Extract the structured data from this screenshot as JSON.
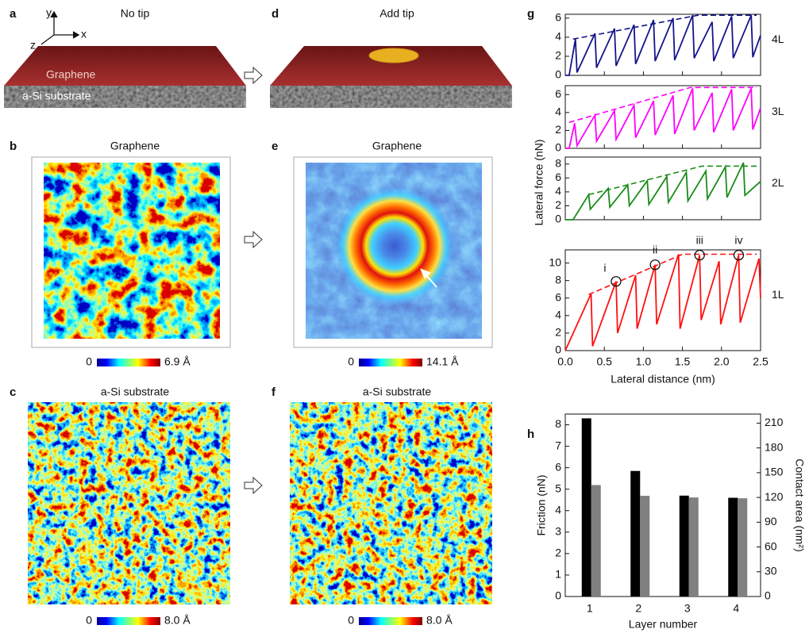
{
  "panels": {
    "a": {
      "letter": "a",
      "title": "No tip",
      "labels": [
        "Graphene",
        "a-Si substrate"
      ],
      "axes": [
        "y",
        "x",
        "z"
      ]
    },
    "b": {
      "letter": "b",
      "title": "Graphene",
      "colorbar": [
        "0",
        "6.9 Å"
      ]
    },
    "c": {
      "letter": "c",
      "title": "a-Si substrate",
      "colorbar": [
        "0",
        "8.0 Å"
      ]
    },
    "d": {
      "letter": "d",
      "title": "Add tip"
    },
    "e": {
      "letter": "e",
      "title": "Graphene",
      "colorbar": [
        "0",
        "14.1 Å"
      ]
    },
    "f": {
      "letter": "f",
      "title": "a-Si substrate",
      "colorbar": [
        "0",
        "8.0 Å"
      ]
    },
    "g": {
      "letter": "g"
    },
    "h": {
      "letter": "h"
    }
  },
  "chart_data": [
    {
      "type": "line",
      "label": "4L",
      "ylabel": "Lateral force (nN)",
      "xlim": [
        0,
        2.5
      ],
      "ylim": [
        0,
        6.4
      ],
      "yticks": [
        0,
        2,
        4,
        6
      ],
      "series": [
        {
          "color": "#14148c",
          "x": [
            0,
            0.05,
            0.13,
            0.15,
            0.38,
            0.4,
            0.63,
            0.65,
            0.88,
            0.9,
            1.13,
            1.15,
            1.38,
            1.4,
            1.63,
            1.65,
            1.88,
            1.9,
            2.13,
            2.15,
            2.38,
            2.4,
            2.5
          ],
          "values": [
            0,
            0,
            3.8,
            0.3,
            4.4,
            0.8,
            4.9,
            1.0,
            5.3,
            1.2,
            5.8,
            1.5,
            6.0,
            1.6,
            6.3,
            1.8,
            5.6,
            1.5,
            6.2,
            1.8,
            6.3,
            1.9,
            4.2
          ]
        },
        {
          "color": "#14148c",
          "dashed": true,
          "x": [
            0.1,
            1.7,
            2.45
          ],
          "values": [
            3.8,
            6.3,
            6.3
          ]
        }
      ]
    },
    {
      "type": "line",
      "label": "3L",
      "xlim": [
        0,
        2.5
      ],
      "ylim": [
        0,
        7
      ],
      "yticks": [
        0,
        2,
        4,
        6
      ],
      "series": [
        {
          "color": "#ff00ff",
          "x": [
            0,
            0.05,
            0.12,
            0.15,
            0.38,
            0.4,
            0.63,
            0.65,
            0.88,
            0.9,
            1.13,
            1.15,
            1.38,
            1.4,
            1.63,
            1.65,
            1.88,
            1.9,
            2.13,
            2.15,
            2.38,
            2.4,
            2.5
          ],
          "values": [
            0,
            0,
            2.8,
            0.3,
            3.7,
            0.8,
            4.2,
            1.0,
            4.8,
            1.2,
            5.3,
            1.5,
            5.9,
            1.6,
            6.7,
            2.0,
            6.2,
            1.8,
            6.6,
            2.0,
            6.7,
            2.1,
            4.5
          ]
        },
        {
          "color": "#ff00ff",
          "dashed": true,
          "x": [
            0.05,
            1.6,
            2.45
          ],
          "values": [
            2.9,
            6.8,
            6.8
          ]
        }
      ]
    },
    {
      "type": "line",
      "label": "2L",
      "xlim": [
        0,
        2.5
      ],
      "ylim": [
        0,
        9
      ],
      "yticks": [
        0,
        2,
        4,
        6,
        8
      ],
      "series": [
        {
          "color": "#1a8c1a",
          "x": [
            0,
            0.1,
            0.3,
            0.32,
            0.55,
            0.57,
            0.8,
            0.82,
            1.05,
            1.07,
            1.3,
            1.32,
            1.55,
            1.57,
            1.8,
            1.82,
            2.05,
            2.07,
            2.28,
            2.3,
            2.5
          ],
          "values": [
            0,
            0,
            3.6,
            1.5,
            4.5,
            1.8,
            5.0,
            2.0,
            5.6,
            2.2,
            6.2,
            2.5,
            6.8,
            2.7,
            7.0,
            3.0,
            7.6,
            3.2,
            8.2,
            3.5,
            5.5
          ]
        },
        {
          "color": "#1a8c1a",
          "dashed": true,
          "x": [
            0.3,
            1.75,
            2.45
          ],
          "values": [
            3.6,
            7.7,
            7.7
          ]
        }
      ]
    },
    {
      "type": "line",
      "label": "1L",
      "xlabel": "Lateral distance (nm)",
      "xlim": [
        0,
        2.5
      ],
      "ylim": [
        0,
        11.5
      ],
      "yticks": [
        0,
        2,
        4,
        6,
        8,
        10
      ],
      "xticks": [
        {
          "value": 0,
          "label": "0.0"
        },
        0.5,
        {
          "value": 1,
          "label": "1.0"
        },
        1.5,
        {
          "value": 2,
          "label": "2.0"
        },
        2.5
      ],
      "series": [
        {
          "color": "#ff1010",
          "x": [
            0,
            0.33,
            0.35,
            0.65,
            0.67,
            0.9,
            0.92,
            1.15,
            1.17,
            1.45,
            1.47,
            1.72,
            1.74,
            1.97,
            1.99,
            2.22,
            2.24,
            2.48,
            2.5
          ],
          "values": [
            0,
            6.5,
            0.5,
            7.9,
            2.0,
            8.6,
            2.5,
            9.8,
            3.0,
            11,
            2.5,
            10.9,
            3.5,
            10.2,
            3.0,
            10.9,
            3.2,
            10.5,
            6.0
          ]
        },
        {
          "color": "#ff1010",
          "dashed": true,
          "x": [
            0.3,
            1.5,
            2.45
          ],
          "values": [
            6.4,
            11,
            11
          ]
        }
      ],
      "annotations": [
        {
          "label": "i",
          "x": 0.65,
          "y": 7.9
        },
        {
          "label": "ii",
          "x": 1.15,
          "y": 9.8
        },
        {
          "label": "iii",
          "x": 1.72,
          "y": 10.9
        },
        {
          "label": "iv",
          "x": 2.22,
          "y": 10.9
        }
      ]
    },
    {
      "type": "bar",
      "categories": [
        "1",
        "2",
        "3",
        "4"
      ],
      "xlabel": "Layer number",
      "ylabel": "Friction (nN)",
      "y2label": "Contact area (nm²)",
      "ylim": [
        0,
        8.5
      ],
      "yticks": [
        0,
        1,
        2,
        3,
        4,
        5,
        6,
        7,
        8
      ],
      "y2lim": [
        0,
        221
      ],
      "y2ticks": [
        0,
        30,
        60,
        90,
        120,
        150,
        180,
        210
      ],
      "series": [
        {
          "color": "#000000",
          "values": [
            8.3,
            5.85,
            4.7,
            4.6
          ]
        },
        {
          "color": "#808080",
          "axis": "y2",
          "values": [
            135,
            122,
            120,
            119
          ]
        }
      ]
    }
  ]
}
